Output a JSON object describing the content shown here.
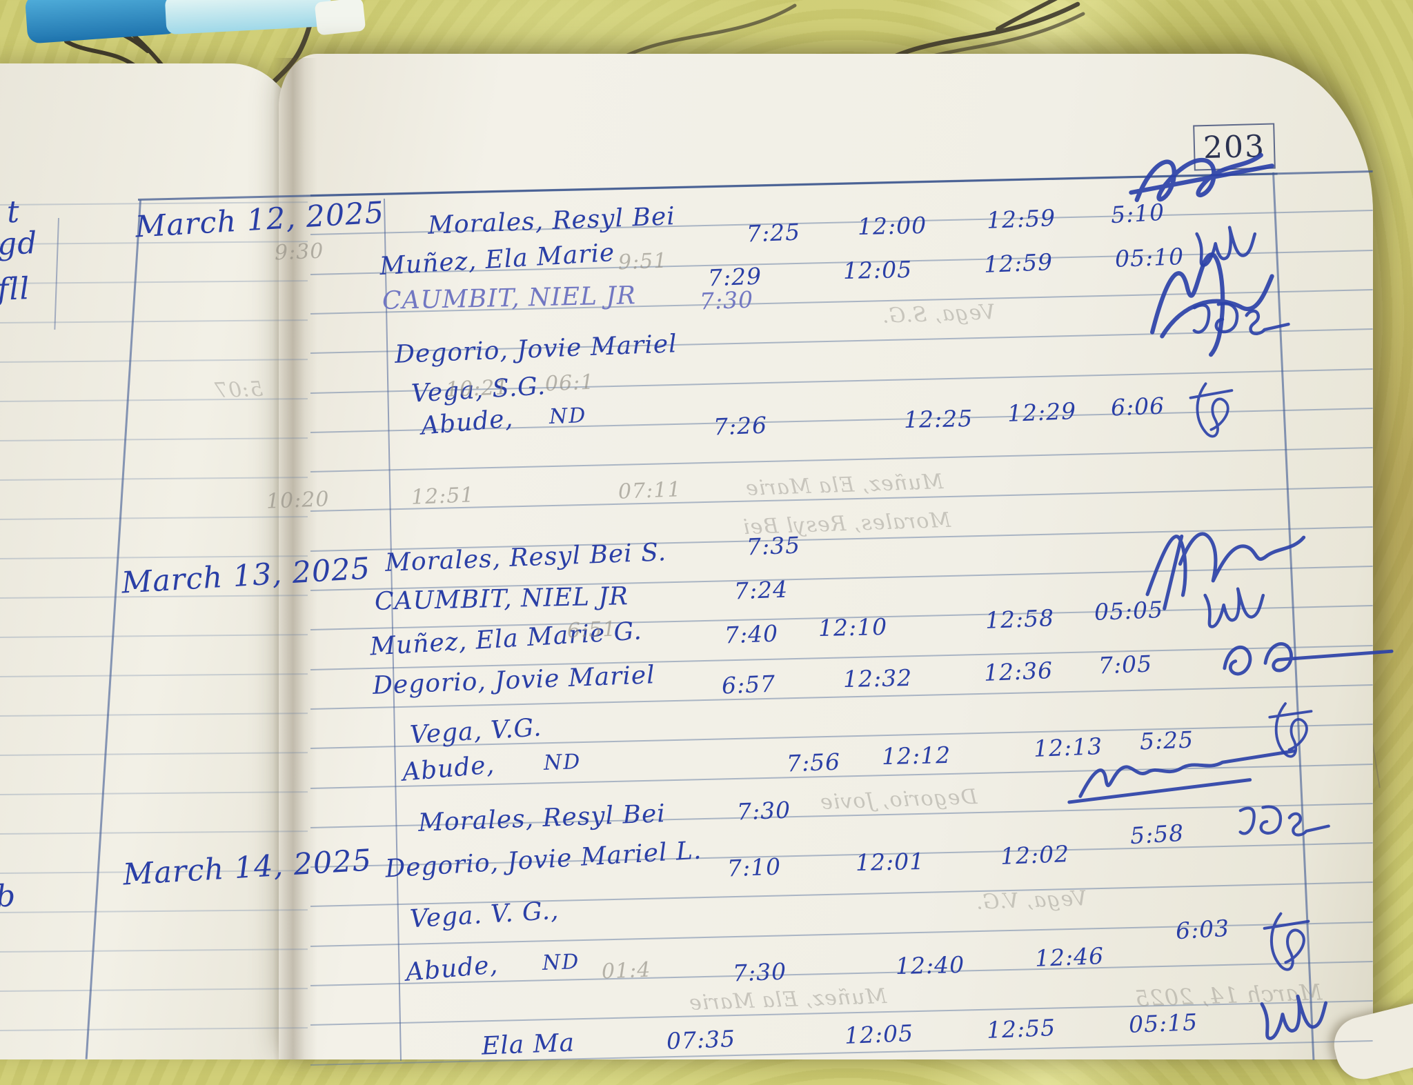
{
  "page_number": "203",
  "ink_colors": {
    "blue": "#2a3fa6",
    "light_blue": "#7177c2",
    "pencil": "#98948a"
  },
  "groups": [
    {
      "date": "March 12, 2025",
      "rows": [
        {
          "name": "Morales, Resyl Bei",
          "t1": "7:25",
          "t2": "12:00",
          "t3": "12:59",
          "t4": "5:10"
        },
        {
          "name": "Muñez, Ela Marie",
          "t1": "7:29",
          "t2": "12:05",
          "t3": "12:59",
          "t4": "05:10"
        },
        {
          "name": "CAUMBIT, NIEL JR",
          "t1": "7:30"
        },
        {
          "name": "Degorio, Jovie Mariel"
        },
        {
          "name": "Vega, S.G."
        },
        {
          "name": "Abude,",
          "nd": "ND",
          "t1": "7:26",
          "t2": "12:25",
          "t3": "12:29",
          "t4": "6:06"
        }
      ]
    },
    {
      "date": "March 13, 2025",
      "rows": [
        {
          "name": "Morales, Resyl Bei S.",
          "t1": "7:35"
        },
        {
          "name": "CAUMBIT, NIEL JR",
          "t1": "7:24"
        },
        {
          "name": "Muñez, Ela Marie G.",
          "t1": "7:40",
          "t2": "12:10",
          "t3": "12:58",
          "t4": "05:05"
        },
        {
          "name": "Degorio, Jovie Mariel",
          "t1": "6:57",
          "t2": "12:32",
          "t3": "12:36",
          "t4": "7:05"
        },
        {
          "name": "Vega, V.G."
        },
        {
          "name": "Abude,",
          "nd": "ND",
          "t1": "7:56",
          "t2": "12:12",
          "t3": "12:13",
          "t4": "5:25"
        }
      ]
    },
    {
      "date": "March 14, 2025",
      "rows": [
        {
          "name": "Morales, Resyl Bei",
          "t1": "7:30"
        },
        {
          "name": "Degorio, Jovie Mariel L.",
          "t1": "7:10",
          "t2": "12:01",
          "t3": "12:02",
          "t4": "5:58"
        },
        {
          "name": "Vega. V. G.,"
        },
        {
          "name": "Abude,",
          "nd": "ND",
          "t1": "7:30",
          "t2": "12:40",
          "t3": "12:46",
          "t4": "6:03"
        }
      ]
    }
  ],
  "bottom_row": {
    "name": "Ela Ma",
    "t1": "07:35",
    "t2": "12:05",
    "t3": "12:55",
    "t4": "05:15"
  },
  "ghosts": [
    "9:30",
    "9:51",
    "5:07",
    "10:21",
    "06:1",
    "10:20",
    "12:51",
    "07:11",
    "Muñez, Ela Marie",
    "Vega, S.G.",
    "Morales, Resyl Bei",
    "6:51",
    "Degorio, Jovie",
    "01:4",
    "Vega, V.G.",
    "March 14, 2025",
    "Muñez, Ela Marie"
  ],
  "left_page_marks": [
    "t",
    "gd",
    "fll",
    "b"
  ]
}
